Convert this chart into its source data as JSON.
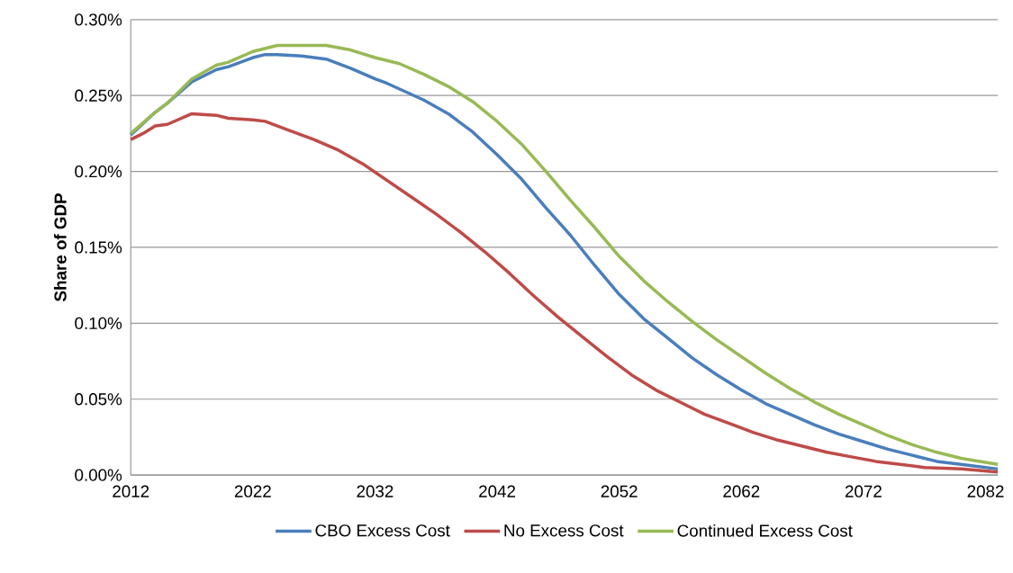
{
  "chart_data": {
    "type": "line",
    "ylabel": "Share of GDP",
    "xlim": [
      2012,
      2083
    ],
    "xticks": [
      2012,
      2022,
      2032,
      2042,
      2052,
      2062,
      2072,
      2082
    ],
    "ylim": [
      0,
      0.3
    ],
    "yticks": [
      {
        "value": 0,
        "label": "0.00%"
      },
      {
        "value": 0.05,
        "label": "0.05%"
      },
      {
        "value": 0.1,
        "label": "0.10%"
      },
      {
        "value": 0.15,
        "label": "0.15%"
      },
      {
        "value": 0.2,
        "label": "0.20%"
      },
      {
        "value": 0.25,
        "label": "0.25%"
      },
      {
        "value": 0.3,
        "label": "0.30%"
      }
    ],
    "grid": "y",
    "legend": "bottom",
    "marker": "none",
    "line_style": "solid",
    "series": [
      {
        "name": "CBO Excess Cost",
        "color": "#4a7ebb",
        "x": [
          2012,
          2014,
          2015,
          2017,
          2019,
          2020,
          2022,
          2023,
          2024,
          2026,
          2028,
          2030,
          2032,
          2033,
          2036,
          2038,
          2040,
          2042,
          2044,
          2046,
          2048,
          2050,
          2052,
          2054,
          2056,
          2058,
          2060,
          2062,
          2064,
          2066,
          2068,
          2070,
          2072,
          2074,
          2076,
          2078,
          2080,
          2083
        ],
        "values": [
          0.224,
          0.239,
          0.245,
          0.259,
          0.267,
          0.269,
          0.275,
          0.277,
          0.277,
          0.276,
          0.274,
          0.268,
          0.261,
          0.258,
          0.247,
          0.238,
          0.226,
          0.211,
          0.195,
          0.176,
          0.158,
          0.138,
          0.119,
          0.103,
          0.09,
          0.077,
          0.066,
          0.056,
          0.047,
          0.04,
          0.033,
          0.027,
          0.022,
          0.017,
          0.013,
          0.009,
          0.007,
          0.004
        ]
      },
      {
        "name": "No Excess Cost",
        "color": "#be4b48",
        "x": [
          2012,
          2013,
          2014,
          2015,
          2017,
          2019,
          2020,
          2022,
          2023,
          2025,
          2027,
          2029,
          2031,
          2033,
          2035,
          2037,
          2039,
          2041,
          2043,
          2045,
          2047,
          2049,
          2051,
          2053,
          2055,
          2057,
          2059,
          2061,
          2063,
          2065,
          2067,
          2069,
          2071,
          2073,
          2075,
          2077,
          2080,
          2083
        ],
        "values": [
          0.221,
          0.225,
          0.23,
          0.231,
          0.238,
          0.237,
          0.235,
          0.234,
          0.233,
          0.227,
          0.221,
          0.214,
          0.205,
          0.194,
          0.183,
          0.172,
          0.16,
          0.147,
          0.133,
          0.118,
          0.104,
          0.091,
          0.078,
          0.066,
          0.056,
          0.048,
          0.04,
          0.034,
          0.028,
          0.023,
          0.019,
          0.015,
          0.012,
          0.009,
          0.007,
          0.005,
          0.004,
          0.002
        ]
      },
      {
        "name": "Continued Excess Cost",
        "color": "#98b954",
        "x": [
          2012,
          2014,
          2015,
          2017,
          2019,
          2020,
          2022,
          2024,
          2026,
          2028,
          2030,
          2032,
          2034,
          2036,
          2038,
          2040,
          2042,
          2044,
          2046,
          2048,
          2050,
          2052,
          2054,
          2056,
          2058,
          2060,
          2062,
          2064,
          2066,
          2068,
          2070,
          2072,
          2074,
          2076,
          2078,
          2080,
          2083
        ],
        "values": [
          0.225,
          0.239,
          0.245,
          0.261,
          0.27,
          0.272,
          0.279,
          0.283,
          0.283,
          0.283,
          0.28,
          0.275,
          0.271,
          0.264,
          0.256,
          0.246,
          0.233,
          0.218,
          0.2,
          0.181,
          0.163,
          0.144,
          0.128,
          0.114,
          0.101,
          0.089,
          0.078,
          0.067,
          0.057,
          0.048,
          0.04,
          0.033,
          0.026,
          0.02,
          0.015,
          0.011,
          0.007
        ]
      }
    ]
  }
}
